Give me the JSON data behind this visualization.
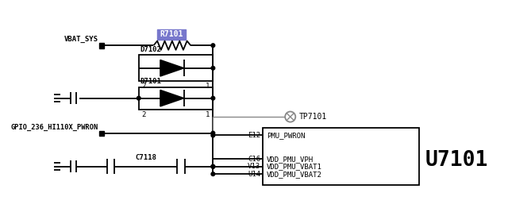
{
  "bg_color": "#ffffff",
  "line_color": "#000000",
  "gray_color": "#888888",
  "resistor_label": "R7101",
  "resistor_label_bg": "#7777cc",
  "resistor_label_color": "#ffffff",
  "vbat_label": "VBAT_SYS",
  "d7102_label": "D7102",
  "d7101_label": "D7101",
  "gpio_label": "GPIO_236_HI110X_PWRON",
  "c7118_label": "C7118",
  "tp7101_label": "TP7101",
  "u7101_label": "U7101",
  "pin_e12": "E12",
  "pin_c16": "C16",
  "pin_v13": "V13",
  "pin_u14": "U14",
  "net_pmu_pwron": "PMU_PWRON",
  "net_vdd_vph": "VDD_PMU_VPH",
  "net_vdd_vbat1": "VDD_PMU_VBAT1",
  "net_vdd_vbat2": "VDD_PMU_VBAT2",
  "figsize": [
    6.4,
    2.67
  ],
  "dpi": 100
}
